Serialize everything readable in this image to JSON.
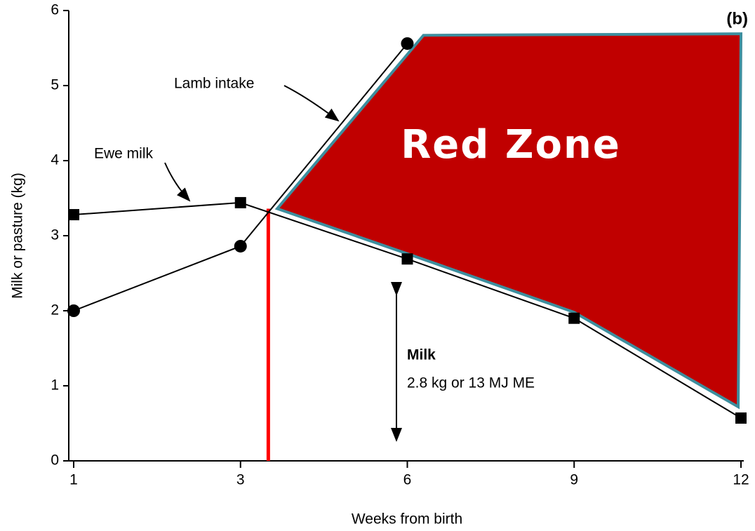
{
  "chart_data": {
    "type": "line",
    "panel_label": "(b)",
    "x_label": "Weeks from birth",
    "y_label": "Milk or pasture (kg)",
    "x": [
      1,
      3,
      6,
      9,
      12
    ],
    "xlim": [
      1,
      12
    ],
    "xticks": [
      1,
      3,
      6,
      9,
      12
    ],
    "ylim": [
      0,
      6
    ],
    "yticks": [
      0,
      1,
      2,
      3,
      4,
      5,
      6
    ],
    "series": [
      {
        "name": "Ewe milk",
        "color": "#000000",
        "marker": "square",
        "values": [
          3.28,
          3.44,
          2.69,
          1.9,
          0.57
        ]
      },
      {
        "name": "Lamb intake",
        "color": "#000000",
        "marker": "circle",
        "values": [
          2.0,
          2.86,
          5.56,
          null,
          null
        ]
      }
    ],
    "red_zone": {
      "label": "Red Zone",
      "color": "#c00000",
      "edge_color": "#3d8e9e",
      "x": [
        3.66,
        6.29,
        12.0,
        11.95,
        9,
        6
      ],
      "y": [
        3.36,
        5.67,
        5.69,
        0.72,
        1.98,
        2.76
      ]
    },
    "red_line": {
      "x": 3.5,
      "y": [
        0,
        3.36
      ],
      "color": "#ff0000"
    },
    "milk_note": {
      "title": "Milk",
      "text": "2.8 kg or 13 MJ ME"
    }
  }
}
